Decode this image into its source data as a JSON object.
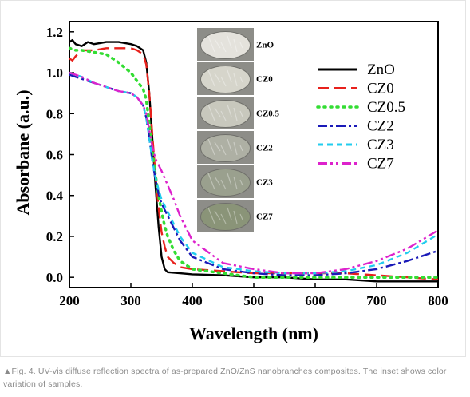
{
  "chart_data": {
    "type": "line",
    "title": "",
    "xlabel": "Wavelength (nm)",
    "ylabel": "Absorbane (a.u.)",
    "xlim": [
      200,
      800
    ],
    "ylim": [
      -0.05,
      1.25
    ],
    "xticks": [
      "200",
      "300",
      "400",
      "500",
      "600",
      "700",
      "800"
    ],
    "yticks": [
      "0.0",
      "0.2",
      "0.4",
      "0.6",
      "0.8",
      "1.0",
      "1.2"
    ],
    "xtick_values": [
      200,
      300,
      400,
      500,
      600,
      700,
      800
    ],
    "ytick_values": [
      0,
      0.2,
      0.4,
      0.6,
      0.8,
      1.0,
      1.2
    ],
    "legend_position": "top-right",
    "series": [
      {
        "name": "ZnO",
        "color": "#000000",
        "dash": "solid",
        "x": [
          200,
          205,
          210,
          220,
          230,
          240,
          260,
          280,
          300,
          310,
          320,
          325,
          330,
          335,
          340,
          345,
          350,
          355,
          360,
          380,
          400,
          450,
          500,
          550,
          600,
          650,
          700,
          750,
          800
        ],
        "y": [
          1.15,
          1.16,
          1.14,
          1.13,
          1.15,
          1.14,
          1.15,
          1.15,
          1.14,
          1.13,
          1.11,
          1.05,
          0.9,
          0.68,
          0.45,
          0.25,
          0.1,
          0.04,
          0.025,
          0.02,
          0.015,
          0.01,
          0.0,
          0.0,
          -0.01,
          -0.01,
          -0.02,
          -0.02,
          -0.02
        ]
      },
      {
        "name": "CZ0",
        "color": "#e8211c",
        "dash": "long-dash",
        "x": [
          200,
          205,
          210,
          220,
          240,
          260,
          280,
          300,
          310,
          320,
          325,
          330,
          335,
          340,
          345,
          350,
          355,
          360,
          370,
          380,
          400,
          450,
          500,
          550,
          600,
          650,
          700,
          750,
          800
        ],
        "y": [
          1.07,
          1.06,
          1.08,
          1.11,
          1.11,
          1.12,
          1.12,
          1.12,
          1.11,
          1.09,
          1.04,
          0.9,
          0.7,
          0.5,
          0.34,
          0.22,
          0.15,
          0.1,
          0.07,
          0.05,
          0.04,
          0.03,
          0.02,
          0.02,
          0.02,
          0.02,
          0.01,
          0.0,
          -0.01
        ]
      },
      {
        "name": "CZ0.5",
        "color": "#33dd33",
        "dash": "dotted",
        "x": [
          200,
          210,
          220,
          240,
          260,
          280,
          300,
          310,
          320,
          325,
          330,
          335,
          340,
          345,
          350,
          355,
          360,
          370,
          380,
          400,
          450,
          500,
          550,
          600,
          650,
          700,
          750,
          800
        ],
        "y": [
          1.12,
          1.11,
          1.11,
          1.1,
          1.09,
          1.05,
          1.0,
          0.96,
          0.92,
          0.87,
          0.75,
          0.62,
          0.5,
          0.4,
          0.32,
          0.25,
          0.2,
          0.13,
          0.08,
          0.04,
          0.02,
          0.0,
          0.0,
          0.0,
          0.0,
          0.0,
          0.0,
          0.0
        ]
      },
      {
        "name": "CZ2",
        "color": "#1a1ab8",
        "dash": "dash-dot",
        "x": [
          200,
          210,
          220,
          240,
          260,
          280,
          300,
          310,
          320,
          325,
          330,
          335,
          340,
          345,
          350,
          360,
          370,
          380,
          400,
          450,
          500,
          550,
          600,
          650,
          700,
          750,
          800
        ],
        "y": [
          0.99,
          0.98,
          0.97,
          0.95,
          0.93,
          0.91,
          0.9,
          0.88,
          0.84,
          0.78,
          0.68,
          0.57,
          0.48,
          0.41,
          0.36,
          0.3,
          0.24,
          0.18,
          0.1,
          0.04,
          0.02,
          0.01,
          0.01,
          0.02,
          0.04,
          0.08,
          0.13
        ]
      },
      {
        "name": "CZ3",
        "color": "#22ccee",
        "dash": "short-dash",
        "x": [
          200,
          210,
          220,
          240,
          260,
          280,
          300,
          310,
          320,
          325,
          330,
          335,
          340,
          345,
          350,
          360,
          370,
          380,
          400,
          450,
          500,
          550,
          600,
          650,
          700,
          750,
          800
        ],
        "y": [
          1.0,
          0.99,
          0.98,
          0.95,
          0.93,
          0.91,
          0.9,
          0.88,
          0.84,
          0.78,
          0.68,
          0.57,
          0.49,
          0.43,
          0.38,
          0.32,
          0.26,
          0.2,
          0.12,
          0.05,
          0.03,
          0.02,
          0.02,
          0.03,
          0.06,
          0.12,
          0.21
        ]
      },
      {
        "name": "CZ7",
        "color": "#dd22cc",
        "dash": "dash-dot-dot",
        "x": [
          200,
          210,
          220,
          240,
          260,
          280,
          300,
          310,
          320,
          325,
          330,
          335,
          340,
          345,
          350,
          360,
          370,
          380,
          400,
          450,
          500,
          550,
          600,
          650,
          700,
          750,
          800
        ],
        "y": [
          1.0,
          0.99,
          0.98,
          0.95,
          0.93,
          0.91,
          0.9,
          0.88,
          0.84,
          0.8,
          0.72,
          0.64,
          0.58,
          0.55,
          0.52,
          0.45,
          0.38,
          0.3,
          0.18,
          0.07,
          0.04,
          0.02,
          0.02,
          0.04,
          0.08,
          0.14,
          0.23
        ]
      }
    ]
  },
  "inset": {
    "samples": [
      {
        "label": "ZnO",
        "color": "#e4e2dc"
      },
      {
        "label": "CZ0",
        "color": "#d6d5cb"
      },
      {
        "label": "CZ0.5",
        "color": "#c8c8bd"
      },
      {
        "label": "CZ2",
        "color": "#aeb0a4"
      },
      {
        "label": "CZ3",
        "color": "#9aa08e"
      },
      {
        "label": "CZ7",
        "color": "#8a9478"
      }
    ]
  },
  "caption": "▲Fig. 4. UV-vis diffuse reflection spectra of as-prepared ZnO/ZnS nanobranches composites. The inset shows color variation of samples."
}
